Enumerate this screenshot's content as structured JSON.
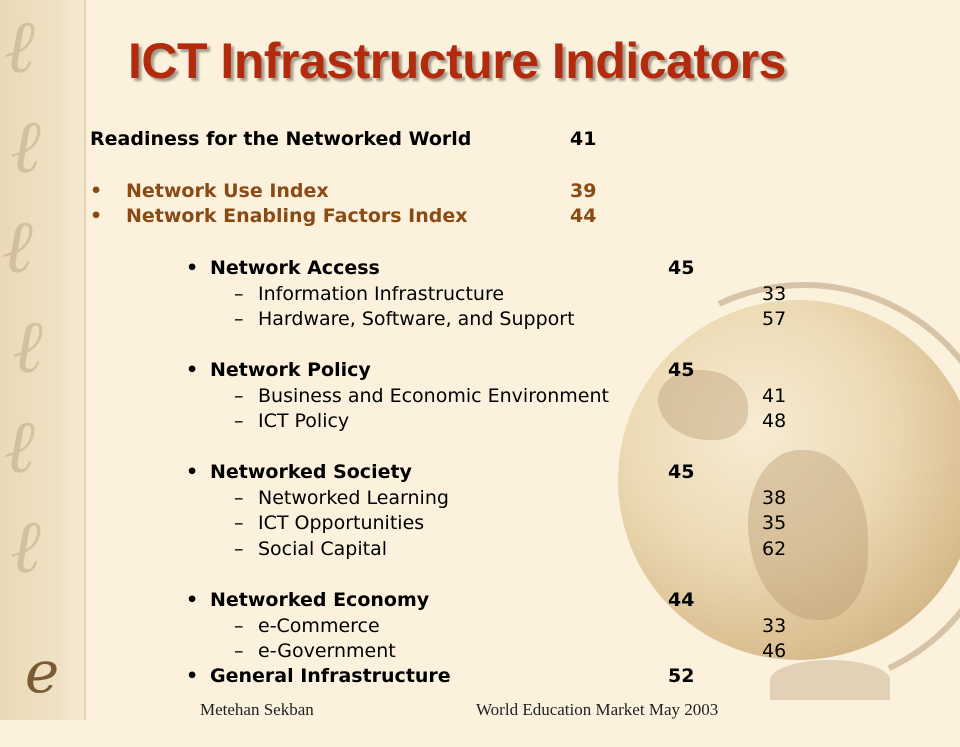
{
  "slide": {
    "title": "ICT Infrastructure Indicators",
    "readiness": {
      "label": "Readiness for the Networked World",
      "value": "41"
    },
    "subindices": [
      {
        "label": "Network Use Index",
        "value": "39"
      },
      {
        "label": "Network Enabling Factors Index",
        "value": "44"
      }
    ],
    "groups": [
      {
        "label": "Network Access",
        "value": "45",
        "items": [
          {
            "label": "Information Infrastructure",
            "value": "33"
          },
          {
            "label": "Hardware, Software, and Support",
            "value": "57"
          }
        ]
      },
      {
        "label": "Network Policy",
        "value": "45",
        "items": [
          {
            "label": "Business and Economic Environment",
            "value": "41"
          },
          {
            "label": "ICT Policy",
            "value": "48"
          }
        ]
      },
      {
        "label": "Networked Society",
        "value": "45",
        "items": [
          {
            "label": "Networked Learning",
            "value": "38"
          },
          {
            "label": "ICT Opportunities",
            "value": "35"
          },
          {
            "label": "Social Capital",
            "value": "62"
          }
        ]
      },
      {
        "label": "Networked Economy",
        "value": "44",
        "items": [
          {
            "label": "e-Commerce",
            "value": "33"
          },
          {
            "label": "e-Government",
            "value": "46"
          }
        ]
      },
      {
        "label": "General Infrastructure",
        "value": "52",
        "items": []
      }
    ],
    "bullet_glyph": "•",
    "dash_glyph": "–",
    "logo_text": "e",
    "footer": {
      "author": "Metehan Sekban",
      "event": "World Education Market May 2003"
    }
  },
  "colors": {
    "title": "#b32b0c",
    "subindex": "#8a4a14",
    "background": "#fbf1dc"
  }
}
